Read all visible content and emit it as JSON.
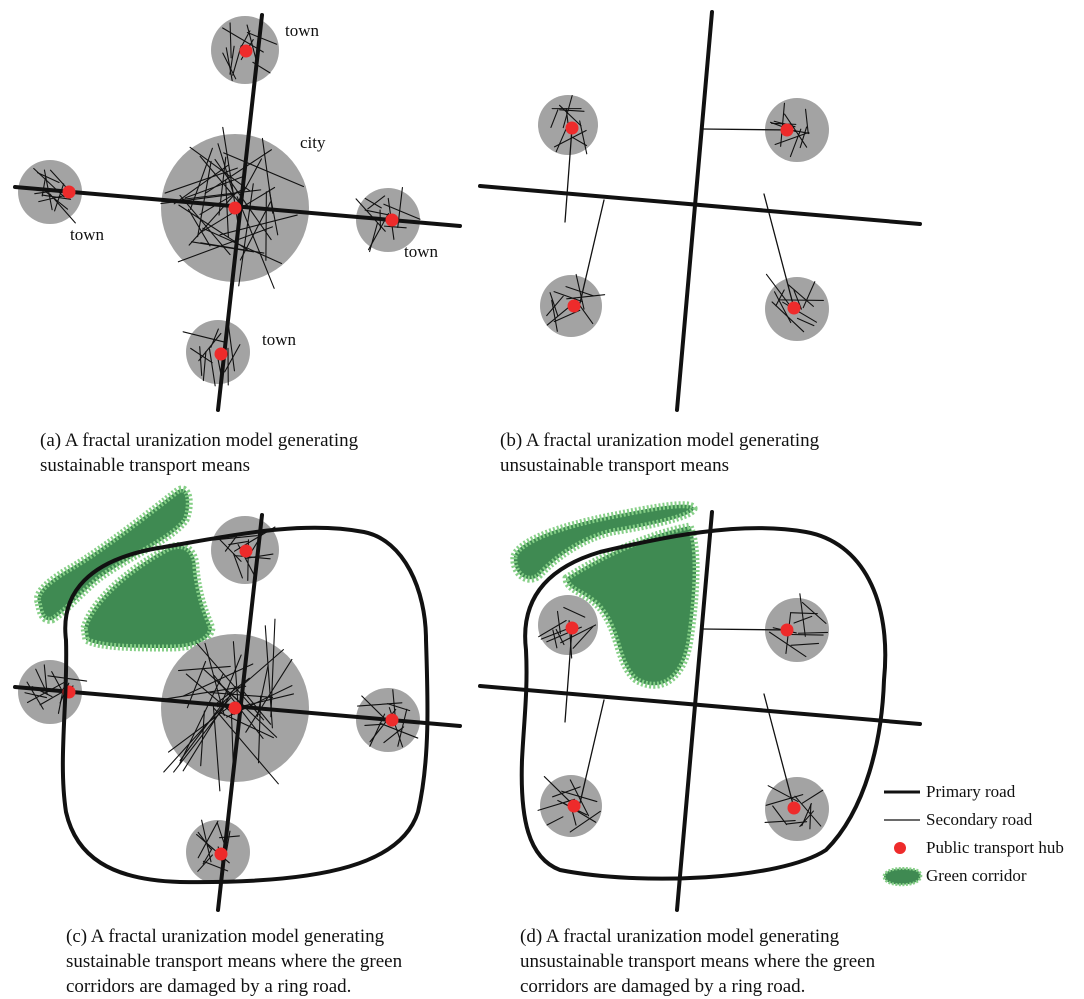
{
  "colors": {
    "settlement": "#a3a3a3",
    "hub": "#ee2b2b",
    "road": "#111111",
    "green_fill": "#3f8a52",
    "green_edge": "#86cf87"
  },
  "labels": {
    "town": "town",
    "city": "city"
  },
  "captions": {
    "a": {
      "line1": "(a) A fractal uranization model generating",
      "line2": "sustainable transport means"
    },
    "b": {
      "line1": "(b) A fractal uranization model generating",
      "line2": "unsustainable transport means"
    },
    "c": {
      "line1": "(c) A fractal uranization model generating",
      "line2": "sustainable transport means where the green",
      "line3": "corridors are damaged by a ring road."
    },
    "d": {
      "line1": "(d) A fractal uranization model generating",
      "line2": "unsustainable transport means where the green",
      "line3": "corridors are damaged by a ring road."
    }
  },
  "legend": {
    "primary_road": "Primary road",
    "secondary_road": "Secondary road",
    "hub": "Public transport hub",
    "green_corridor": "Green corridor"
  }
}
